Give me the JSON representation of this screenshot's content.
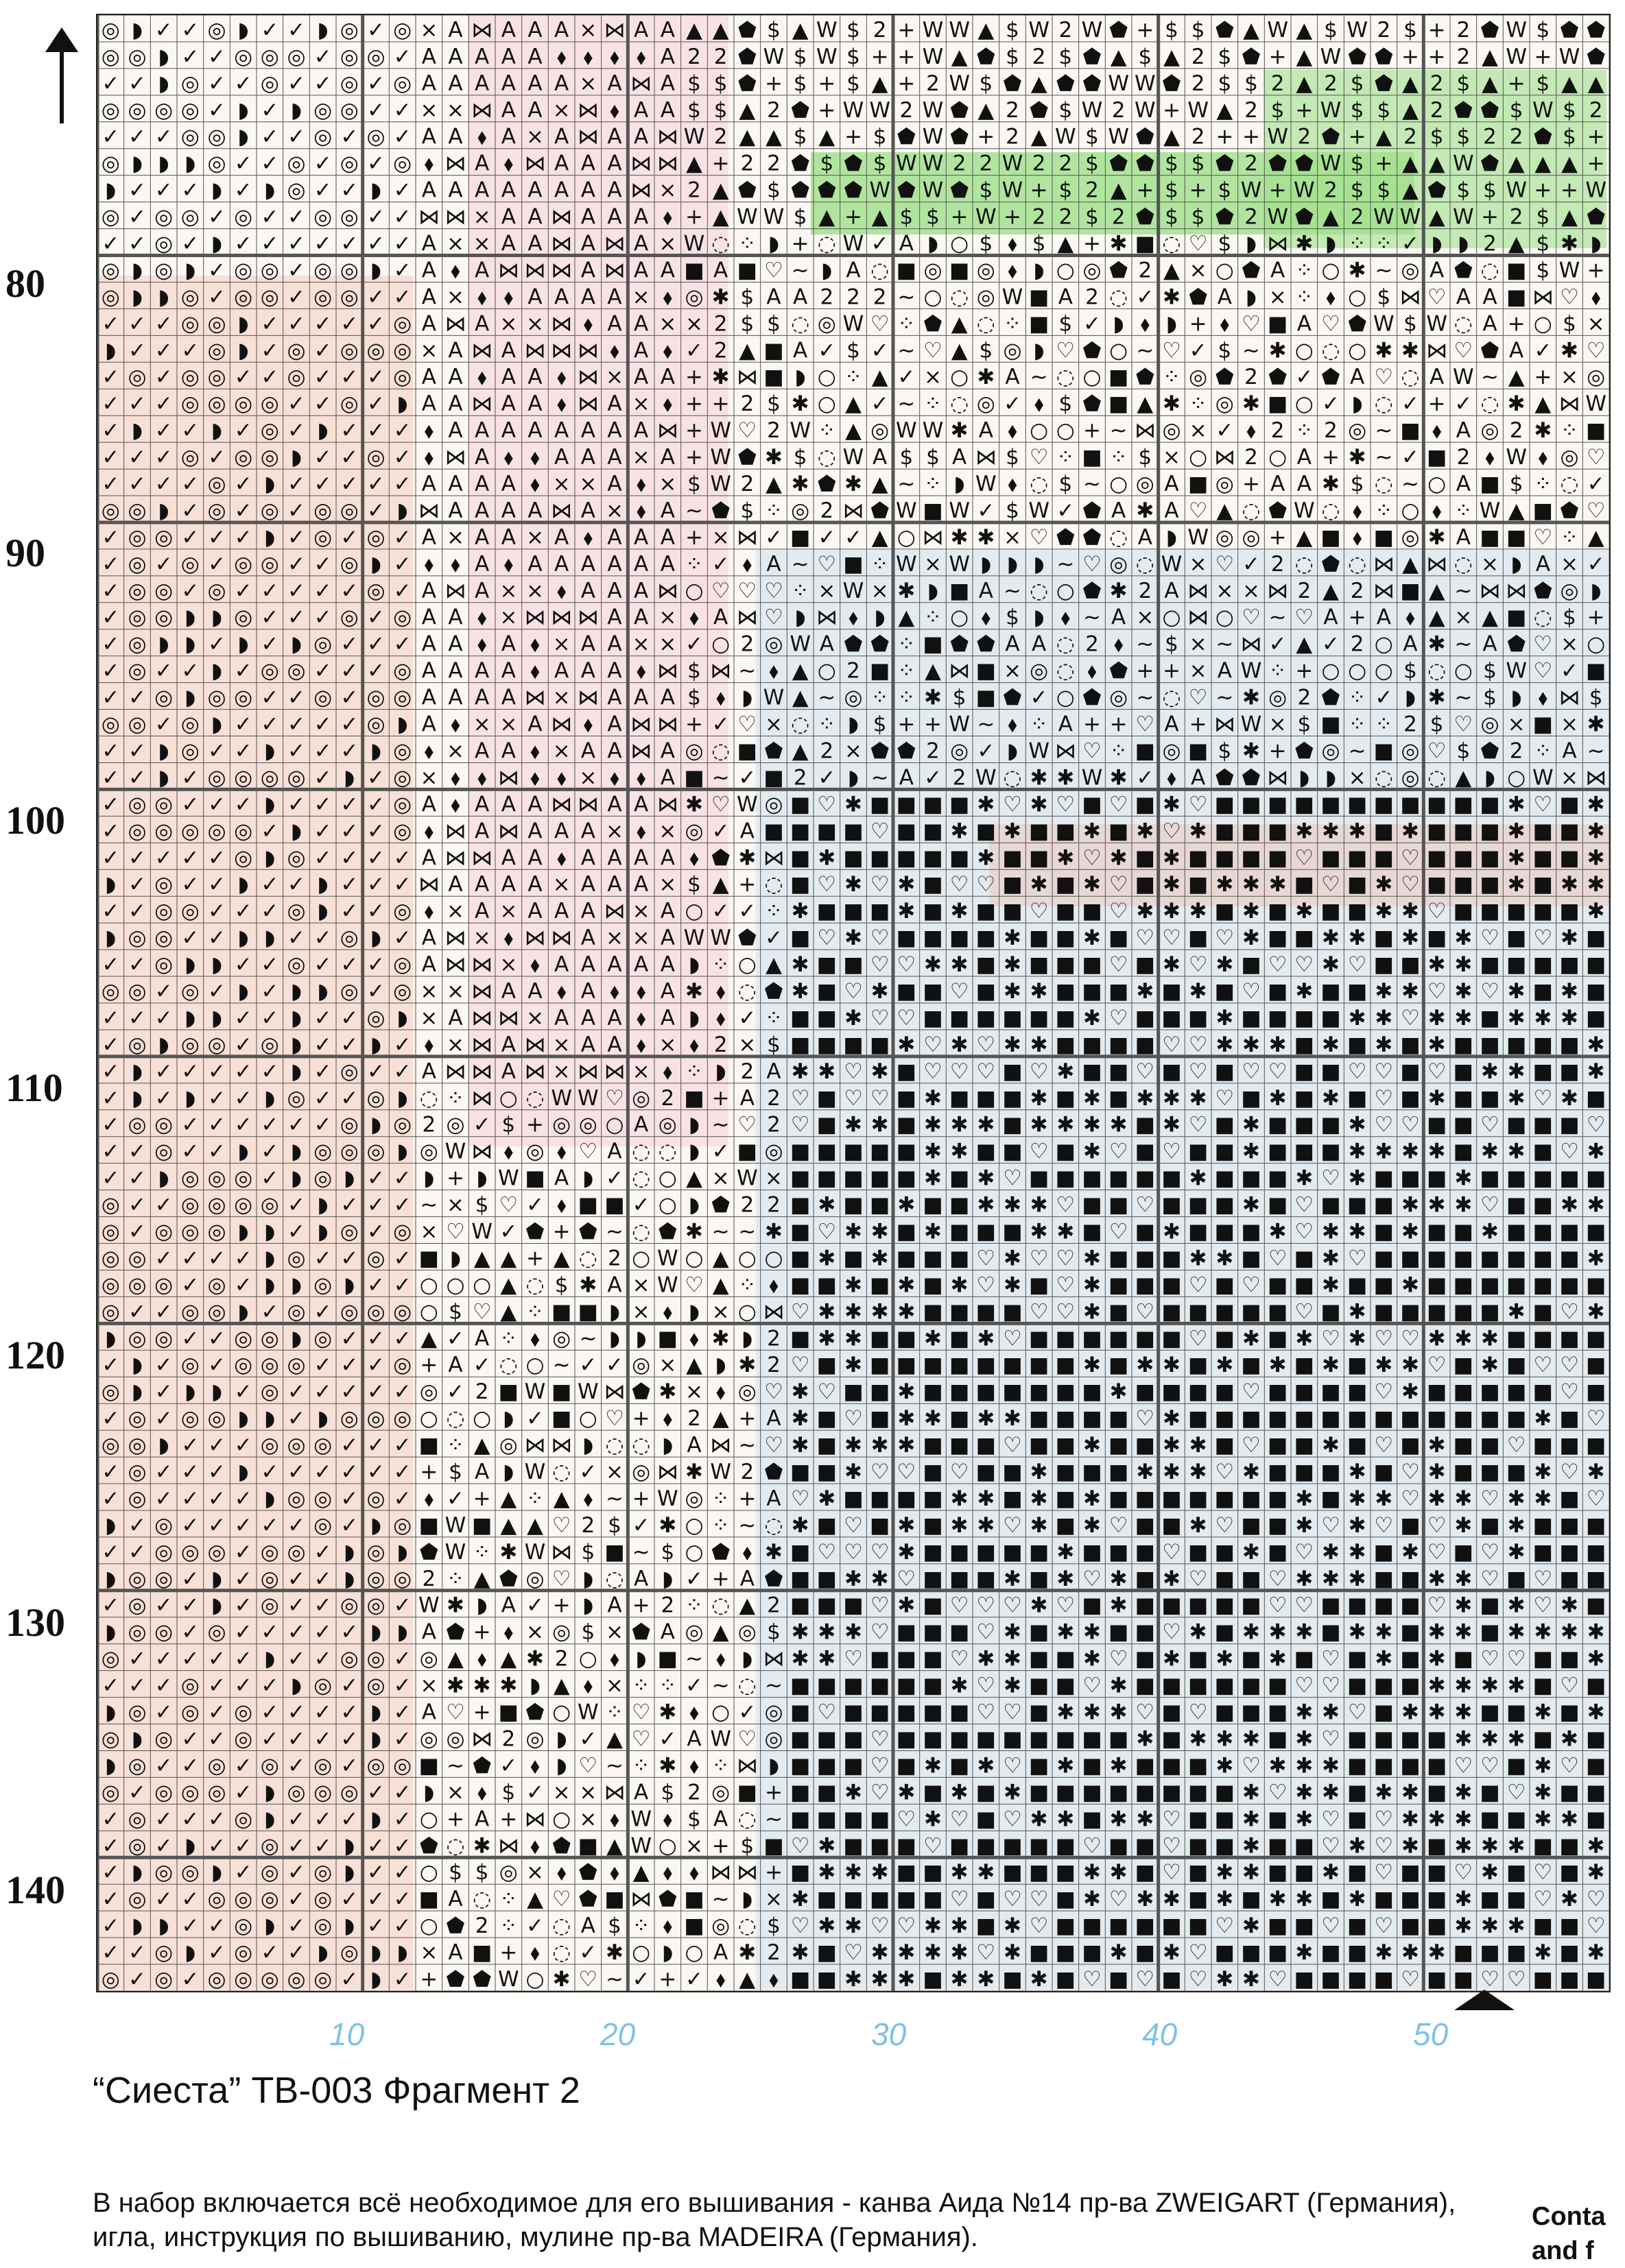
{
  "chart": {
    "row_labels": [
      "80",
      "90",
      "100",
      "110",
      "120",
      "130",
      "140"
    ],
    "col_labels": [
      "10",
      "20",
      "30",
      "40",
      "50"
    ],
    "palette": {
      "salmon": "#f2b5a3",
      "pink": "#f3b9cf",
      "blue": "#b8d3ee",
      "green": "#9fe08a",
      "canvas": "#fbf7f2",
      "ink": "#111111",
      "grid": "#555555"
    },
    "symbols": [
      "✓",
      "◎",
      "A",
      "■",
      "✱",
      "♡",
      "◗",
      "⋈",
      "⨯",
      "~",
      "○",
      "⬧",
      "⬟",
      "◌",
      "W",
      "$",
      "2",
      "+",
      "⁘",
      "▲"
    ]
  },
  "title": "“Сиеста” ТВ-003 Фрагмент 2",
  "description": "В набор включается всё необходимое для его вышивания - канва Аида №14 пр-ва ZWEIGART (Германия), игла, инструкция по вышиванию, мулине пр-ва MADEIRA (Германия).",
  "side_note": "Conta\nand f"
}
